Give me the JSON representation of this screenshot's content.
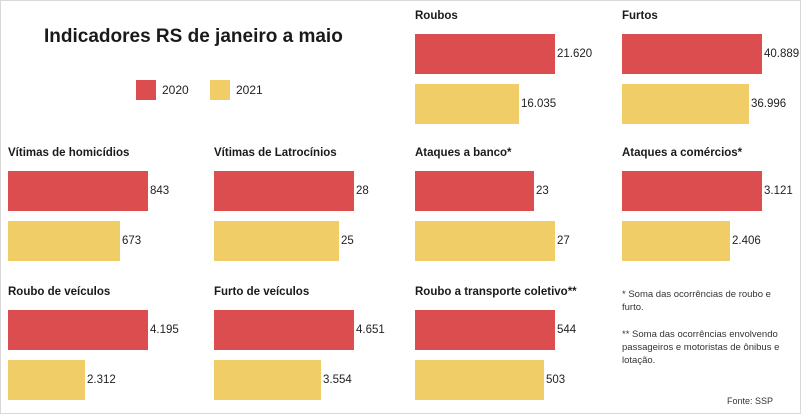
{
  "colors": {
    "y2020": "#dc4d4f",
    "y2021": "#f0cd67"
  },
  "title": "Indicadores RS de janeiro a maio",
  "legend": [
    {
      "label": "2020",
      "color": "#dc4d4f"
    },
    {
      "label": "2021",
      "color": "#f0cd67"
    }
  ],
  "chart_data": [
    {
      "type": "bar",
      "title": "Roubos",
      "categories": [
        "2020",
        "2021"
      ],
      "values": [
        21620,
        16035
      ],
      "value_labels": [
        "21.620",
        "16.035"
      ]
    },
    {
      "type": "bar",
      "title": "Furtos",
      "categories": [
        "2020",
        "2021"
      ],
      "values": [
        40889,
        36996
      ],
      "value_labels": [
        "40.889",
        "36.996"
      ]
    },
    {
      "type": "bar",
      "title": "Vítimas de homicídios",
      "categories": [
        "2020",
        "2021"
      ],
      "values": [
        843,
        673
      ],
      "value_labels": [
        "843",
        "673"
      ]
    },
    {
      "type": "bar",
      "title": "Vítimas de Latrocínios",
      "categories": [
        "2020",
        "2021"
      ],
      "values": [
        28,
        25
      ],
      "value_labels": [
        "28",
        "25"
      ]
    },
    {
      "type": "bar",
      "title": "Ataques a banco*",
      "categories": [
        "2020",
        "2021"
      ],
      "values": [
        23,
        27
      ],
      "value_labels": [
        "23",
        "27"
      ]
    },
    {
      "type": "bar",
      "title": "Ataques a comércios*",
      "categories": [
        "2020",
        "2021"
      ],
      "values": [
        3121,
        2406
      ],
      "value_labels": [
        "3.121",
        "2.406"
      ]
    },
    {
      "type": "bar",
      "title": "Roubo de veículos",
      "categories": [
        "2020",
        "2021"
      ],
      "values": [
        4195,
        2312
      ],
      "value_labels": [
        "4.195",
        "2.312"
      ]
    },
    {
      "type": "bar",
      "title": "Furto de veículos",
      "categories": [
        "2020",
        "2021"
      ],
      "values": [
        4651,
        3554
      ],
      "value_labels": [
        "4.651",
        "3.554"
      ]
    },
    {
      "type": "bar",
      "title": "Roubo a transporte coletivo**",
      "categories": [
        "2020",
        "2021"
      ],
      "values": [
        544,
        503
      ],
      "value_labels": [
        "544",
        "503"
      ]
    }
  ],
  "notes": [
    "* Soma das ocorrências de roubo e furto.",
    "** Soma das ocorrências envolvendo passageiros e motoristas de ônibus e lotação."
  ],
  "source": "Fonte: SSP"
}
